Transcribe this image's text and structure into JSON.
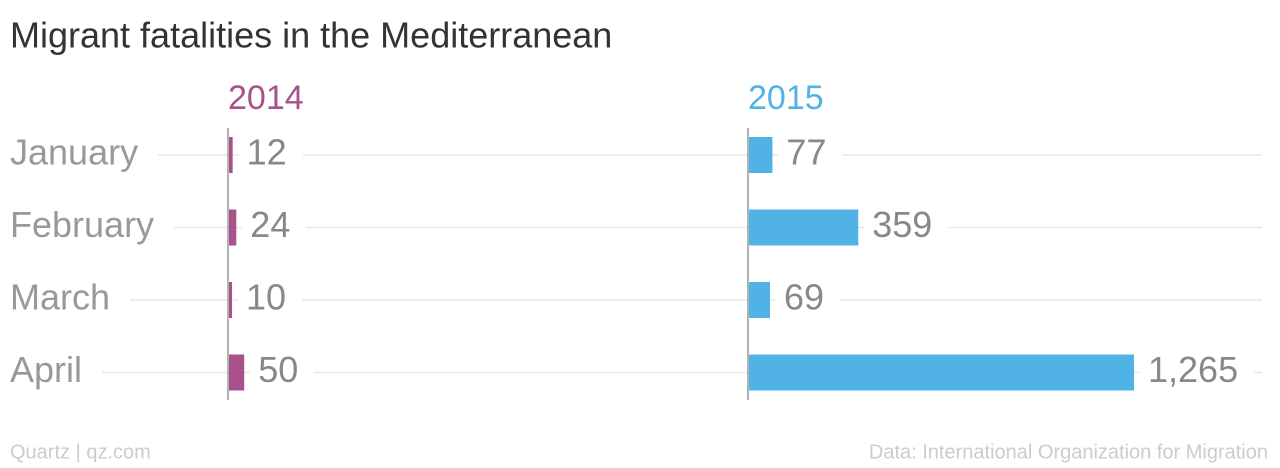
{
  "chart_data": {
    "type": "bar",
    "title": "Migrant fatalities in the Mediterranean",
    "categories": [
      "January",
      "February",
      "March",
      "April"
    ],
    "series": [
      {
        "name": "2014",
        "color": "#a8518a",
        "values": [
          12,
          24,
          10,
          50
        ]
      },
      {
        "name": "2015",
        "color": "#51b2e5",
        "values": [
          77,
          359,
          69,
          1265
        ],
        "value_labels": [
          "77",
          "359",
          "69",
          "1,265"
        ]
      }
    ],
    "credit": "Quartz | qz.com",
    "source": "Data: International Organization for Migration"
  }
}
